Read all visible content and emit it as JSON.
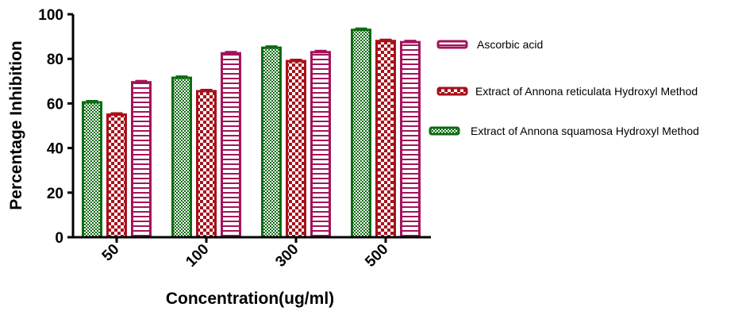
{
  "chart_data": {
    "type": "bar",
    "title": "",
    "xlabel": "Concentration(ug/ml)",
    "ylabel": "Percentage Inhibition",
    "categories": [
      "50",
      "100",
      "300",
      "500"
    ],
    "ylim": [
      0,
      100
    ],
    "yticks": [
      0,
      20,
      40,
      60,
      80,
      100
    ],
    "grid": false,
    "legend_position": "right",
    "series": [
      {
        "name": "Extract of Annona squamosa Hydroxyl Method",
        "values": [
          60.5,
          71.5,
          85,
          93
        ],
        "color": "#0d6b12",
        "pattern": "checker-fine"
      },
      {
        "name": "Extract of Annona reticulata Hydroxyl Method",
        "values": [
          55,
          65.5,
          79,
          88
        ],
        "color": "#a8111b",
        "pattern": "checker"
      },
      {
        "name": "Ascorbic acid",
        "values": [
          69.5,
          82.5,
          83,
          87.5
        ],
        "color": "#a3145a",
        "pattern": "horizontal-lines"
      }
    ],
    "legend_order": [
      "Ascorbic acid",
      "Extract of Annona reticulata Hydroxyl Method",
      "Extract of Annona squamosa Hydroxyl Method"
    ]
  }
}
